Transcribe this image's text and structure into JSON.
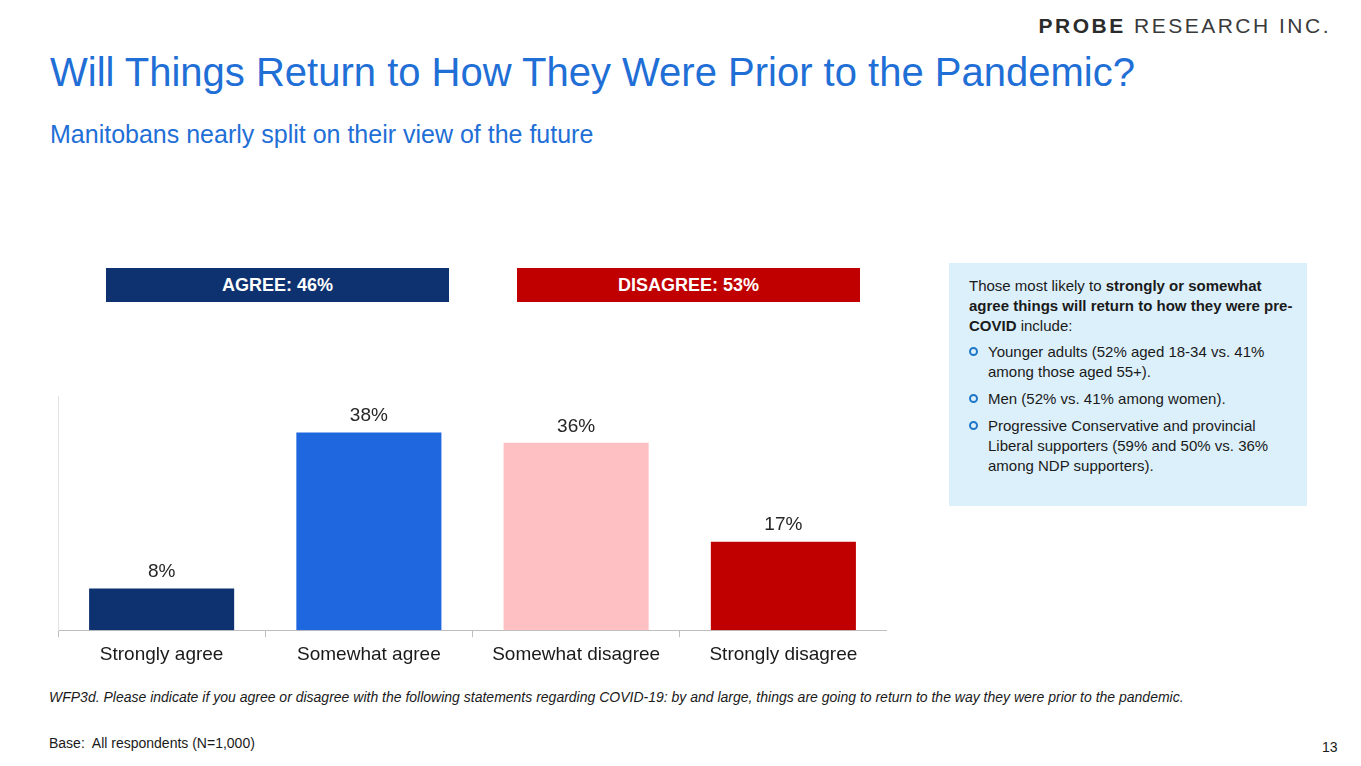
{
  "brand": {
    "name": "PROBE",
    "suffix": "RESEARCH INC."
  },
  "chart_data": {
    "type": "bar",
    "title": "Will Things Return to How They Were Prior to the Pandemic?",
    "subtitle": "Manitobans nearly split on their view of the future",
    "categories": [
      "Strongly agree",
      "Somewhat agree",
      "Somewhat disagree",
      "Strongly disagree"
    ],
    "values": [
      8,
      38,
      36,
      17
    ],
    "value_labels": [
      "8%",
      "38%",
      "36%",
      "17%"
    ],
    "colors": [
      "#0e3270",
      "#1f67de",
      "#ffc0c4",
      "#c00000"
    ],
    "ylim": [
      0,
      45
    ],
    "yticks": [
      0
    ],
    "grid": false,
    "data_labels": true,
    "tick_labels": "x"
  },
  "summary_boxes": [
    {
      "text": "AGREE: 46%",
      "color": "#0e3270"
    },
    {
      "text": "DISAGREE: 53%",
      "color": "#c00000"
    }
  ],
  "callout": {
    "intro": [
      {
        "text": "Those most likely to ",
        "bold": false
      },
      {
        "text": "strongly or somewhat agree things will return to how they were pre-COVID",
        "bold": true
      },
      {
        "text": " include:",
        "bold": false
      }
    ],
    "bullets": [
      "Younger adults (52% aged 18-34 vs. 41% among those aged 55+).",
      "Men (52% vs. 41% among women).",
      "Progressive Conservative and provincial Liberal supporters (59% and 50% vs. 36% among NDP supporters)."
    ]
  },
  "footnote": {
    "question": "WFP3d. Please indicate if you agree or disagree with the following statements regarding COVID-19: by and large, things are going to return to the way they were prior to the pandemic.",
    "base": "Base:  All respondents (N=1,000)"
  },
  "page_number": "13"
}
